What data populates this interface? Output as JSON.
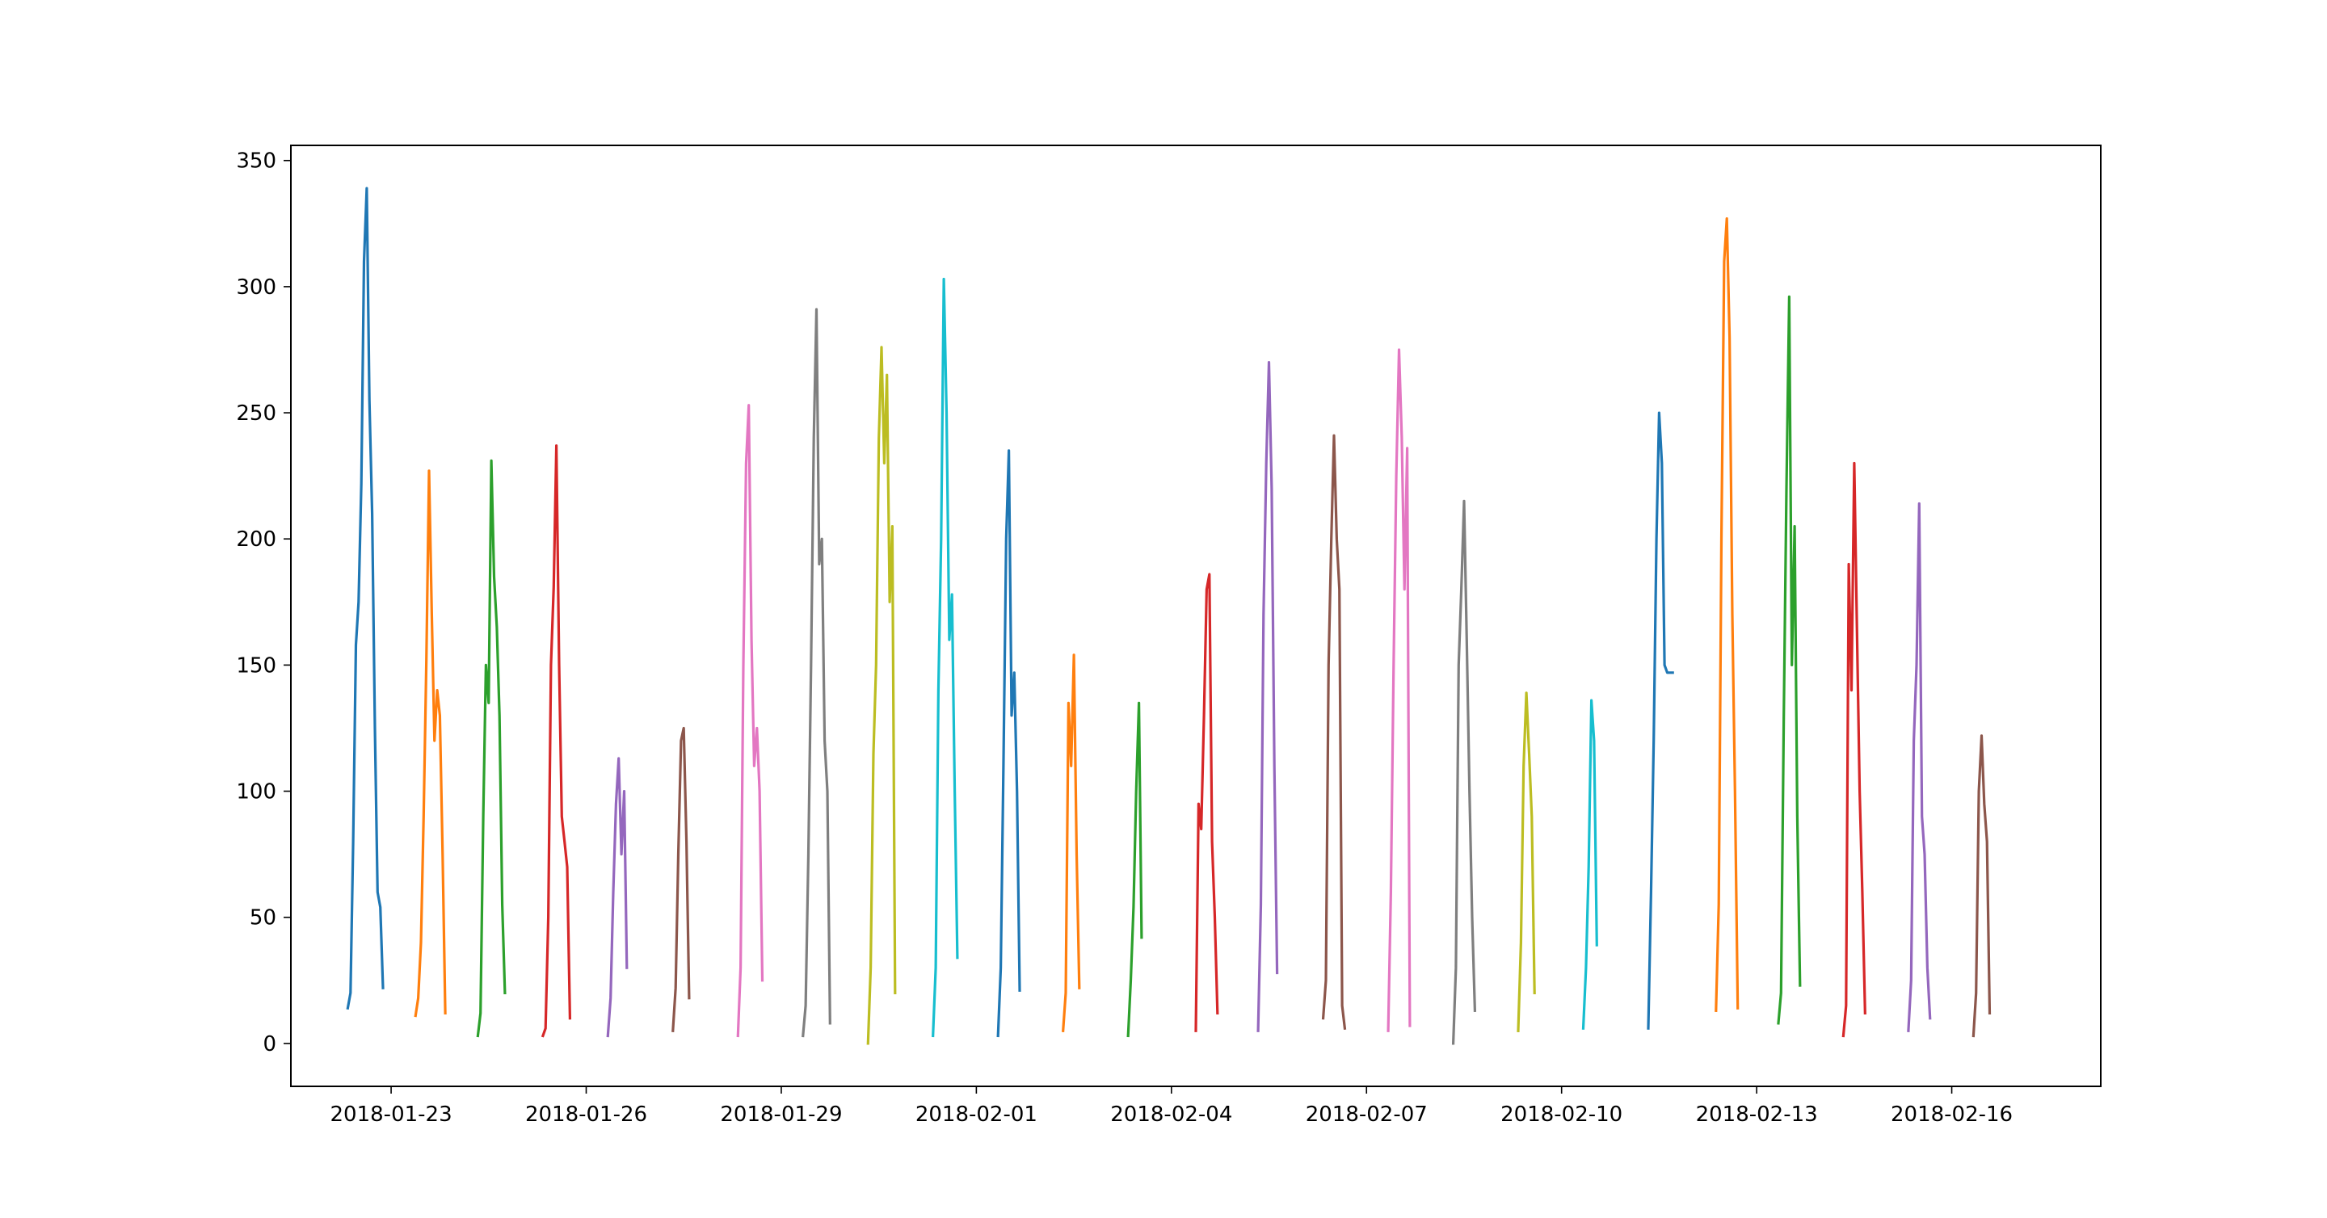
{
  "chart_data": {
    "type": "line",
    "title": "",
    "xlabel": "",
    "ylabel": "",
    "x_axis_type": "date",
    "xlim": [
      "2018-01-21T11:00",
      "2018-02-18T07:00"
    ],
    "ylim": [
      -17,
      356
    ],
    "x_ticks": [
      "2018-01-23",
      "2018-01-26",
      "2018-01-29",
      "2018-02-01",
      "2018-02-04",
      "2018-02-07",
      "2018-02-10",
      "2018-02-13",
      "2018-02-16"
    ],
    "y_ticks": [
      0,
      50,
      100,
      150,
      200,
      250,
      300,
      350
    ],
    "grid": false,
    "legend": "none",
    "color_cycle": [
      "#1f77b4",
      "#ff7f0e",
      "#2ca02c",
      "#d62728",
      "#9467bd",
      "#8c564b",
      "#e377c2",
      "#7f7f7f",
      "#bcbd22",
      "#17becf"
    ],
    "series": [
      {
        "color": "#1f77b4",
        "points": [
          [
            "2018-01-22T08:00",
            14
          ],
          [
            "2018-01-22T09:00",
            20
          ],
          [
            "2018-01-22T10:00",
            80
          ],
          [
            "2018-01-22T11:00",
            158
          ],
          [
            "2018-01-22T12:00",
            175
          ],
          [
            "2018-01-22T13:00",
            222
          ],
          [
            "2018-01-22T14:00",
            310
          ],
          [
            "2018-01-22T15:00",
            339
          ],
          [
            "2018-01-22T16:00",
            255
          ],
          [
            "2018-01-22T17:00",
            210
          ],
          [
            "2018-01-22T18:00",
            125
          ],
          [
            "2018-01-22T19:00",
            60
          ],
          [
            "2018-01-22T20:00",
            54
          ],
          [
            "2018-01-22T21:00",
            22
          ]
        ]
      },
      {
        "color": "#ff7f0e",
        "points": [
          [
            "2018-01-23T09:00",
            11
          ],
          [
            "2018-01-23T10:00",
            18
          ],
          [
            "2018-01-23T11:00",
            40
          ],
          [
            "2018-01-23T12:00",
            90
          ],
          [
            "2018-01-23T13:00",
            152
          ],
          [
            "2018-01-23T14:00",
            227
          ],
          [
            "2018-01-23T15:00",
            170
          ],
          [
            "2018-01-23T16:00",
            120
          ],
          [
            "2018-01-23T17:00",
            140
          ],
          [
            "2018-01-23T18:00",
            130
          ],
          [
            "2018-01-23T19:00",
            75
          ],
          [
            "2018-01-23T20:00",
            12
          ]
        ]
      },
      {
        "color": "#2ca02c",
        "points": [
          [
            "2018-01-24T08:00",
            3
          ],
          [
            "2018-01-24T09:00",
            12
          ],
          [
            "2018-01-24T10:00",
            90
          ],
          [
            "2018-01-24T11:00",
            150
          ],
          [
            "2018-01-24T12:00",
            135
          ],
          [
            "2018-01-24T13:00",
            231
          ],
          [
            "2018-01-24T14:00",
            185
          ],
          [
            "2018-01-24T15:00",
            165
          ],
          [
            "2018-01-24T16:00",
            130
          ],
          [
            "2018-01-24T17:00",
            55
          ],
          [
            "2018-01-24T18:00",
            20
          ]
        ]
      },
      {
        "color": "#d62728",
        "points": [
          [
            "2018-01-25T08:00",
            3
          ],
          [
            "2018-01-25T09:00",
            6
          ],
          [
            "2018-01-25T10:00",
            50
          ],
          [
            "2018-01-25T11:00",
            150
          ],
          [
            "2018-01-25T12:00",
            181
          ],
          [
            "2018-01-25T13:00",
            237
          ],
          [
            "2018-01-25T14:00",
            150
          ],
          [
            "2018-01-25T15:00",
            90
          ],
          [
            "2018-01-25T16:00",
            80
          ],
          [
            "2018-01-25T17:00",
            70
          ],
          [
            "2018-01-25T18:00",
            10
          ]
        ]
      },
      {
        "color": "#9467bd",
        "points": [
          [
            "2018-01-26T08:00",
            3
          ],
          [
            "2018-01-26T09:00",
            18
          ],
          [
            "2018-01-26T10:00",
            60
          ],
          [
            "2018-01-26T11:00",
            95
          ],
          [
            "2018-01-26T12:00",
            113
          ],
          [
            "2018-01-26T13:00",
            75
          ],
          [
            "2018-01-26T14:00",
            100
          ],
          [
            "2018-01-26T15:00",
            30
          ]
        ]
      },
      {
        "color": "#8c564b",
        "points": [
          [
            "2018-01-27T08:00",
            5
          ],
          [
            "2018-01-27T09:00",
            22
          ],
          [
            "2018-01-27T10:00",
            75
          ],
          [
            "2018-01-27T11:00",
            120
          ],
          [
            "2018-01-27T12:00",
            125
          ],
          [
            "2018-01-27T13:00",
            80
          ],
          [
            "2018-01-27T14:00",
            18
          ]
        ]
      },
      {
        "color": "#e377c2",
        "points": [
          [
            "2018-01-28T08:00",
            3
          ],
          [
            "2018-01-28T09:00",
            30
          ],
          [
            "2018-01-28T10:00",
            150
          ],
          [
            "2018-01-28T11:00",
            230
          ],
          [
            "2018-01-28T12:00",
            253
          ],
          [
            "2018-01-28T13:00",
            160
          ],
          [
            "2018-01-28T14:00",
            110
          ],
          [
            "2018-01-28T15:00",
            125
          ],
          [
            "2018-01-28T16:00",
            100
          ],
          [
            "2018-01-28T17:00",
            25
          ]
        ]
      },
      {
        "color": "#7f7f7f",
        "points": [
          [
            "2018-01-29T08:00",
            3
          ],
          [
            "2018-01-29T09:00",
            15
          ],
          [
            "2018-01-29T10:00",
            75
          ],
          [
            "2018-01-29T11:00",
            150
          ],
          [
            "2018-01-29T12:00",
            240
          ],
          [
            "2018-01-29T13:00",
            291
          ],
          [
            "2018-01-29T14:00",
            190
          ],
          [
            "2018-01-29T15:00",
            200
          ],
          [
            "2018-01-29T16:00",
            120
          ],
          [
            "2018-01-29T17:00",
            100
          ],
          [
            "2018-01-29T18:00",
            8
          ]
        ]
      },
      {
        "color": "#bcbd22",
        "points": [
          [
            "2018-01-30T08:00",
            0
          ],
          [
            "2018-01-30T09:00",
            30
          ],
          [
            "2018-01-30T10:00",
            115
          ],
          [
            "2018-01-30T11:00",
            150
          ],
          [
            "2018-01-30T12:00",
            240
          ],
          [
            "2018-01-30T13:00",
            276
          ],
          [
            "2018-01-30T14:00",
            230
          ],
          [
            "2018-01-30T15:00",
            265
          ],
          [
            "2018-01-30T16:00",
            175
          ],
          [
            "2018-01-30T17:00",
            205
          ],
          [
            "2018-01-30T18:00",
            20
          ]
        ]
      },
      {
        "color": "#17becf",
        "points": [
          [
            "2018-01-31T08:00",
            3
          ],
          [
            "2018-01-31T09:00",
            30
          ],
          [
            "2018-01-31T10:00",
            140
          ],
          [
            "2018-01-31T11:00",
            200
          ],
          [
            "2018-01-31T12:00",
            303
          ],
          [
            "2018-01-31T13:00",
            250
          ],
          [
            "2018-01-31T14:00",
            160
          ],
          [
            "2018-01-31T15:00",
            178
          ],
          [
            "2018-01-31T16:00",
            100
          ],
          [
            "2018-01-31T17:00",
            34
          ]
        ]
      },
      {
        "color": "#1f77b4",
        "points": [
          [
            "2018-02-01T08:00",
            3
          ],
          [
            "2018-02-01T09:00",
            30
          ],
          [
            "2018-02-01T10:00",
            110
          ],
          [
            "2018-02-01T11:00",
            200
          ],
          [
            "2018-02-01T12:00",
            235
          ],
          [
            "2018-02-01T13:00",
            130
          ],
          [
            "2018-02-01T14:00",
            147
          ],
          [
            "2018-02-01T15:00",
            100
          ],
          [
            "2018-02-01T16:00",
            21
          ]
        ]
      },
      {
        "color": "#ff7f0e",
        "points": [
          [
            "2018-02-02T08:00",
            5
          ],
          [
            "2018-02-02T09:00",
            20
          ],
          [
            "2018-02-02T10:00",
            135
          ],
          [
            "2018-02-02T11:00",
            110
          ],
          [
            "2018-02-02T12:00",
            154
          ],
          [
            "2018-02-02T13:00",
            75
          ],
          [
            "2018-02-02T14:00",
            22
          ]
        ]
      },
      {
        "color": "#2ca02c",
        "points": [
          [
            "2018-02-03T08:00",
            3
          ],
          [
            "2018-02-03T09:00",
            25
          ],
          [
            "2018-02-03T10:00",
            54
          ],
          [
            "2018-02-03T11:00",
            100
          ],
          [
            "2018-02-03T12:00",
            135
          ],
          [
            "2018-02-03T13:00",
            42
          ]
        ]
      },
      {
        "color": "#d62728",
        "points": [
          [
            "2018-02-04T09:00",
            5
          ],
          [
            "2018-02-04T10:00",
            95
          ],
          [
            "2018-02-04T11:00",
            85
          ],
          [
            "2018-02-04T12:00",
            130
          ],
          [
            "2018-02-04T13:00",
            180
          ],
          [
            "2018-02-04T14:00",
            186
          ],
          [
            "2018-02-04T15:00",
            80
          ],
          [
            "2018-02-04T16:00",
            50
          ],
          [
            "2018-02-04T17:00",
            12
          ]
        ]
      },
      {
        "color": "#9467bd",
        "points": [
          [
            "2018-02-05T08:00",
            5
          ],
          [
            "2018-02-05T09:00",
            55
          ],
          [
            "2018-02-05T10:00",
            170
          ],
          [
            "2018-02-05T11:00",
            230
          ],
          [
            "2018-02-05T12:00",
            270
          ],
          [
            "2018-02-05T13:00",
            220
          ],
          [
            "2018-02-05T14:00",
            110
          ],
          [
            "2018-02-05T15:00",
            28
          ]
        ]
      },
      {
        "color": "#8c564b",
        "points": [
          [
            "2018-02-06T08:00",
            10
          ],
          [
            "2018-02-06T09:00",
            25
          ],
          [
            "2018-02-06T10:00",
            150
          ],
          [
            "2018-02-06T11:00",
            200
          ],
          [
            "2018-02-06T12:00",
            241
          ],
          [
            "2018-02-06T13:00",
            200
          ],
          [
            "2018-02-06T14:00",
            180
          ],
          [
            "2018-02-06T15:00",
            15
          ],
          [
            "2018-02-06T16:00",
            6
          ]
        ]
      },
      {
        "color": "#e377c2",
        "points": [
          [
            "2018-02-07T08:00",
            5
          ],
          [
            "2018-02-07T09:00",
            60
          ],
          [
            "2018-02-07T10:00",
            150
          ],
          [
            "2018-02-07T11:00",
            225
          ],
          [
            "2018-02-07T12:00",
            275
          ],
          [
            "2018-02-07T13:00",
            240
          ],
          [
            "2018-02-07T14:00",
            180
          ],
          [
            "2018-02-07T15:00",
            236
          ],
          [
            "2018-02-07T16:00",
            7
          ]
        ]
      },
      {
        "color": "#7f7f7f",
        "points": [
          [
            "2018-02-08T08:00",
            0
          ],
          [
            "2018-02-08T09:00",
            30
          ],
          [
            "2018-02-08T10:00",
            150
          ],
          [
            "2018-02-08T11:00",
            180
          ],
          [
            "2018-02-08T12:00",
            215
          ],
          [
            "2018-02-08T13:00",
            160
          ],
          [
            "2018-02-08T14:00",
            100
          ],
          [
            "2018-02-08T15:00",
            50
          ],
          [
            "2018-02-08T16:00",
            13
          ]
        ]
      },
      {
        "color": "#bcbd22",
        "points": [
          [
            "2018-02-09T08:00",
            5
          ],
          [
            "2018-02-09T09:00",
            40
          ],
          [
            "2018-02-09T10:00",
            110
          ],
          [
            "2018-02-09T11:00",
            139
          ],
          [
            "2018-02-09T12:00",
            115
          ],
          [
            "2018-02-09T13:00",
            90
          ],
          [
            "2018-02-09T14:00",
            20
          ]
        ]
      },
      {
        "color": "#17becf",
        "points": [
          [
            "2018-02-10T08:00",
            6
          ],
          [
            "2018-02-10T09:00",
            30
          ],
          [
            "2018-02-10T10:00",
            70
          ],
          [
            "2018-02-10T11:00",
            136
          ],
          [
            "2018-02-10T12:00",
            120
          ],
          [
            "2018-02-10T13:00",
            39
          ]
        ]
      },
      {
        "color": "#1f77b4",
        "points": [
          [
            "2018-02-11T08:00",
            6
          ],
          [
            "2018-02-11T09:00",
            60
          ],
          [
            "2018-02-11T10:00",
            120
          ],
          [
            "2018-02-11T11:00",
            200
          ],
          [
            "2018-02-11T12:00",
            250
          ],
          [
            "2018-02-11T13:00",
            230
          ],
          [
            "2018-02-11T14:00",
            150
          ],
          [
            "2018-02-11T15:00",
            147
          ],
          [
            "2018-02-11T16:00",
            147
          ],
          [
            "2018-02-11T17:00",
            147
          ]
        ]
      },
      {
        "color": "#ff7f0e",
        "points": [
          [
            "2018-02-12T09:00",
            13
          ],
          [
            "2018-02-12T10:00",
            55
          ],
          [
            "2018-02-12T11:00",
            200
          ],
          [
            "2018-02-12T12:00",
            310
          ],
          [
            "2018-02-12T13:00",
            327
          ],
          [
            "2018-02-12T14:00",
            280
          ],
          [
            "2018-02-12T15:00",
            170
          ],
          [
            "2018-02-12T16:00",
            100
          ],
          [
            "2018-02-12T17:00",
            14
          ]
        ]
      },
      {
        "color": "#2ca02c",
        "points": [
          [
            "2018-02-13T08:00",
            8
          ],
          [
            "2018-02-13T09:00",
            20
          ],
          [
            "2018-02-13T10:00",
            130
          ],
          [
            "2018-02-13T11:00",
            220
          ],
          [
            "2018-02-13T12:00",
            296
          ],
          [
            "2018-02-13T13:00",
            150
          ],
          [
            "2018-02-13T14:00",
            205
          ],
          [
            "2018-02-13T15:00",
            90
          ],
          [
            "2018-02-13T16:00",
            23
          ]
        ]
      },
      {
        "color": "#d62728",
        "points": [
          [
            "2018-02-14T08:00",
            3
          ],
          [
            "2018-02-14T09:00",
            15
          ],
          [
            "2018-02-14T10:00",
            190
          ],
          [
            "2018-02-14T11:00",
            140
          ],
          [
            "2018-02-14T12:00",
            230
          ],
          [
            "2018-02-14T13:00",
            165
          ],
          [
            "2018-02-14T14:00",
            100
          ],
          [
            "2018-02-14T15:00",
            60
          ],
          [
            "2018-02-14T16:00",
            12
          ]
        ]
      },
      {
        "color": "#9467bd",
        "points": [
          [
            "2018-02-15T08:00",
            5
          ],
          [
            "2018-02-15T09:00",
            25
          ],
          [
            "2018-02-15T10:00",
            120
          ],
          [
            "2018-02-15T11:00",
            150
          ],
          [
            "2018-02-15T12:00",
            214
          ],
          [
            "2018-02-15T13:00",
            90
          ],
          [
            "2018-02-15T14:00",
            75
          ],
          [
            "2018-02-15T15:00",
            30
          ],
          [
            "2018-02-15T16:00",
            10
          ]
        ]
      },
      {
        "color": "#8c564b",
        "points": [
          [
            "2018-02-16T08:00",
            3
          ],
          [
            "2018-02-16T09:00",
            20
          ],
          [
            "2018-02-16T10:00",
            100
          ],
          [
            "2018-02-16T11:00",
            122
          ],
          [
            "2018-02-16T12:00",
            95
          ],
          [
            "2018-02-16T13:00",
            80
          ],
          [
            "2018-02-16T14:00",
            12
          ]
        ]
      }
    ]
  }
}
